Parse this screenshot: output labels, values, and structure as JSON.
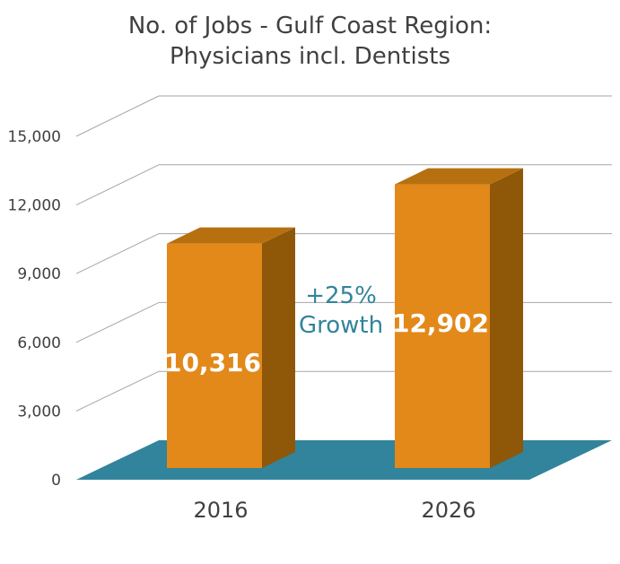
{
  "title_line1": "No. of Jobs - Gulf Coast Region:",
  "title_line2": "Physicians incl. Dentists",
  "chart_data": {
    "type": "bar",
    "title": "No. of Jobs - Gulf Coast Region: Physicians incl. Dentists",
    "categories": [
      "2016",
      "2026"
    ],
    "values": [
      10316,
      12902
    ],
    "data_labels": [
      "10,316",
      "12,902"
    ],
    "yticks": [
      "0",
      "3,000",
      "6,000",
      "9,000",
      "12,000",
      "15,000"
    ],
    "ylim": [
      0,
      15000
    ],
    "grid": true,
    "annotation": [
      "+25%",
      "Growth"
    ],
    "colors": {
      "bar_front": "#e2891a",
      "bar_top": "#b7700f",
      "bar_side": "#8f5708",
      "floor": "#31849b",
      "grid": "#a6a6a6",
      "annotation": "#31849b"
    }
  }
}
